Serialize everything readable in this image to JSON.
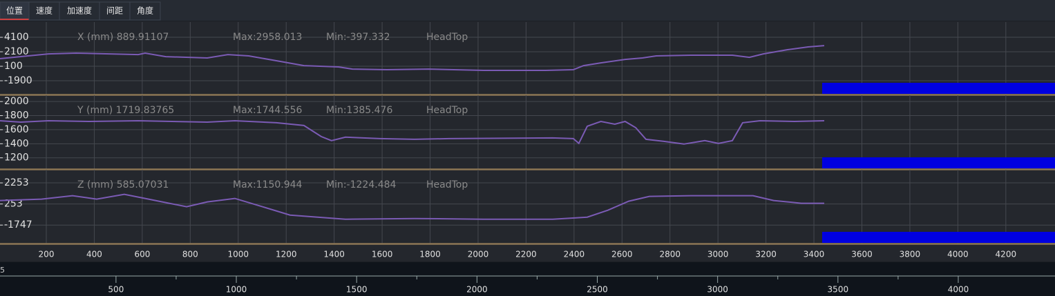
{
  "tabs": [
    "位置",
    "速度",
    "加速度",
    "间距",
    "角度"
  ],
  "line_color": "#7b5bb5",
  "xaxis": {
    "xlim": [
      7,
      4405
    ],
    "xticks": [
      200,
      400,
      600,
      800,
      1000,
      1200,
      1400,
      1600,
      1800,
      2000,
      2200,
      2400,
      2600,
      2800,
      3000,
      3200,
      3400,
      3600,
      3800,
      4000,
      4200
    ]
  },
  "panels": [
    {
      "label": "X (mm) 889.91107",
      "max": "Max:2958.013",
      "min": "Min:-397.332",
      "tag": "HeadTop",
      "ylim": [
        -3800,
        6200
      ],
      "yticks": [
        4100,
        2100,
        100,
        -1900
      ],
      "x": [
        7,
        209,
        324,
        583,
        612,
        698,
        871,
        957,
        1044,
        1159,
        1274,
        1418,
        1476,
        1620,
        1793,
        2023,
        2282,
        2397,
        2440,
        2512,
        2613,
        2685,
        2743,
        2887,
        3060,
        3131,
        3189,
        3290,
        3376,
        3443
      ],
      "values": [
        1148,
        1814,
        1910,
        1719,
        1910,
        1433,
        1243,
        1719,
        1529,
        862,
        195,
        5,
        -281,
        -376,
        -281,
        -471,
        -471,
        -376,
        195,
        576,
        1052,
        1243,
        1529,
        1624,
        1624,
        1338,
        1814,
        2386,
        2767,
        2957
      ]
    },
    {
      "label": "Y (mm) 1719.83765",
      "max": "Max:1744.556",
      "min": "Min:1385.476",
      "tag": "HeadTop",
      "ylim": [
        1040,
        2090
      ],
      "yticks": [
        2000,
        1800,
        1600,
        1400,
        1200
      ],
      "x": [
        7,
        93,
        209,
        381,
        583,
        871,
        986,
        1159,
        1274,
        1346,
        1389,
        1447,
        1591,
        1735,
        1879,
        2311,
        2397,
        2420,
        2455,
        2512,
        2570,
        2613,
        2657,
        2700,
        2772,
        2858,
        2945,
        3002,
        3060,
        3103,
        3175,
        3319,
        3443
      ],
      "values": [
        1727,
        1707,
        1727,
        1717,
        1727,
        1707,
        1727,
        1698,
        1659,
        1502,
        1444,
        1493,
        1473,
        1463,
        1473,
        1483,
        1473,
        1405,
        1649,
        1717,
        1678,
        1717,
        1629,
        1463,
        1434,
        1395,
        1444,
        1405,
        1444,
        1698,
        1727,
        1717,
        1727
      ]
    },
    {
      "label": "Z (mm) 585.07031",
      "max": "Max:1150.944",
      "min": "Min:-1224.484",
      "tag": "HeadTop",
      "ylim": [
        -3500,
        3500
      ],
      "yticks": [
        2253,
        253,
        -1747
      ],
      "x": [
        7,
        180,
        309,
        410,
        525,
        612,
        698,
        785,
        871,
        986,
        1101,
        1216,
        1447,
        1735,
        2023,
        2311,
        2455,
        2541,
        2628,
        2714,
        2887,
        3146,
        3232,
        3347,
        3443
      ],
      "values": [
        581,
        712,
        1040,
        712,
        1171,
        778,
        384,
        -9,
        450,
        778,
        -9,
        -796,
        -1190,
        -1124,
        -1190,
        -1190,
        -993,
        -337,
        515,
        974,
        1040,
        1040,
        581,
        319,
        319
      ]
    }
  ],
  "ruler": {
    "start_label": "5",
    "xlim": [
      18,
      4402
    ],
    "xticks": [
      500,
      1000,
      1500,
      2000,
      2500,
      3000,
      3500,
      4000
    ]
  }
}
